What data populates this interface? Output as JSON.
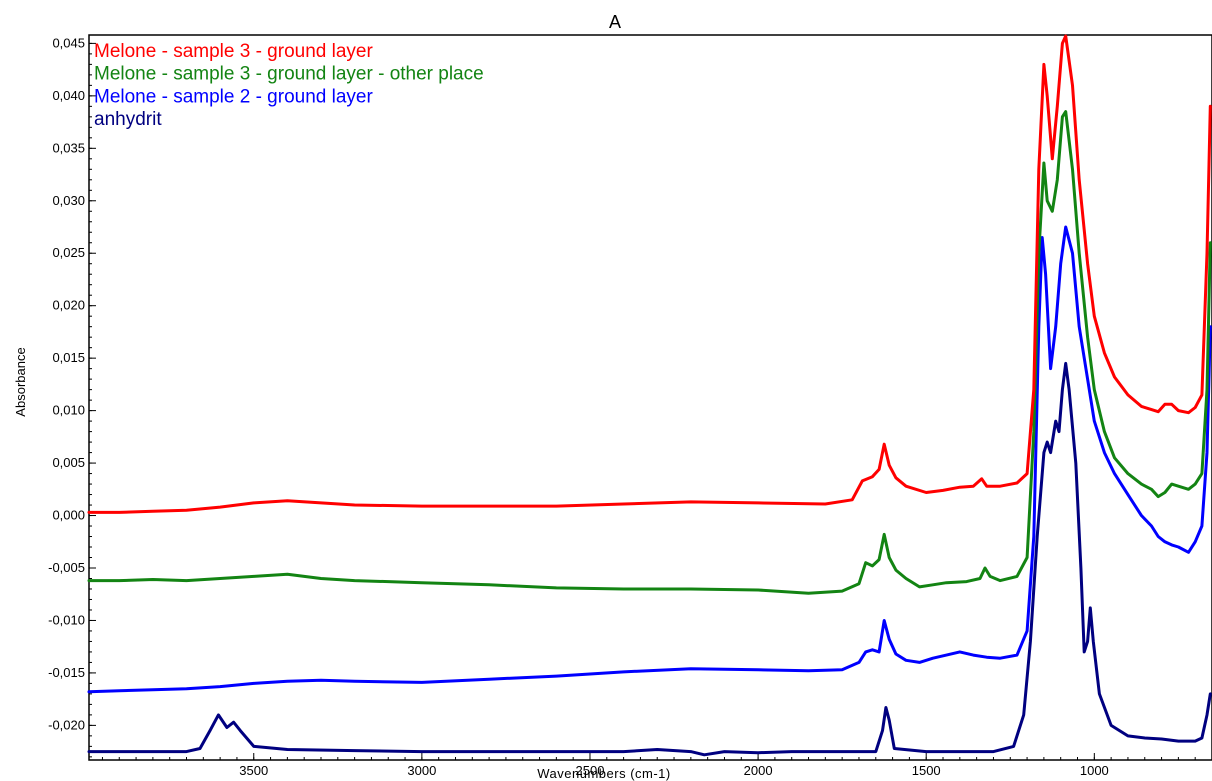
{
  "chart_data": {
    "type": "line",
    "title": "A",
    "xlabel": "Wavenumbers (cm-1)",
    "ylabel": "Absorbance",
    "xlim": [
      3990,
      650
    ],
    "ylim": [
      -0.0233,
      0.0458
    ],
    "x_reversed": true,
    "x_ticks": [
      3500,
      3000,
      2500,
      2000,
      1500,
      1000
    ],
    "y_ticks": [
      -0.02,
      -0.015,
      -0.01,
      -0.005,
      0.0,
      0.005,
      0.01,
      0.015,
      0.02,
      0.025,
      0.03,
      0.035,
      0.04,
      0.045
    ],
    "y_tick_labels": [
      "-0,020",
      "-0,015",
      "-0,010",
      "-0,005",
      "0,000",
      "0,005",
      "0,010",
      "0,015",
      "0,020",
      "0,025",
      "0,030",
      "0,035",
      "0,040",
      "0,045"
    ],
    "x_tick_labels": [
      "3500",
      "3000",
      "2500",
      "2000",
      "1500",
      "1000"
    ],
    "grid": false,
    "legend_position": "top-left",
    "series": [
      {
        "name": "Melone - sample 3 - ground layer",
        "color": "#ff0000",
        "points": [
          [
            3990,
            0.0003
          ],
          [
            3900,
            0.0003
          ],
          [
            3800,
            0.0004
          ],
          [
            3700,
            0.0005
          ],
          [
            3600,
            0.0008
          ],
          [
            3500,
            0.0012
          ],
          [
            3400,
            0.0014
          ],
          [
            3300,
            0.0012
          ],
          [
            3200,
            0.001
          ],
          [
            3000,
            0.0009
          ],
          [
            2800,
            0.0009
          ],
          [
            2600,
            0.0009
          ],
          [
            2400,
            0.0011
          ],
          [
            2200,
            0.0013
          ],
          [
            2000,
            0.0012
          ],
          [
            1800,
            0.0011
          ],
          [
            1720,
            0.0015
          ],
          [
            1690,
            0.0033
          ],
          [
            1660,
            0.0037
          ],
          [
            1640,
            0.0044
          ],
          [
            1625,
            0.0068
          ],
          [
            1610,
            0.0048
          ],
          [
            1590,
            0.0036
          ],
          [
            1560,
            0.0028
          ],
          [
            1500,
            0.0022
          ],
          [
            1450,
            0.0024
          ],
          [
            1400,
            0.0027
          ],
          [
            1360,
            0.0028
          ],
          [
            1335,
            0.0035
          ],
          [
            1320,
            0.0028
          ],
          [
            1280,
            0.0028
          ],
          [
            1230,
            0.0031
          ],
          [
            1200,
            0.004
          ],
          [
            1180,
            0.012
          ],
          [
            1165,
            0.033
          ],
          [
            1150,
            0.043
          ],
          [
            1140,
            0.04
          ],
          [
            1125,
            0.034
          ],
          [
            1110,
            0.039
          ],
          [
            1095,
            0.045
          ],
          [
            1085,
            0.0457
          ],
          [
            1065,
            0.041
          ],
          [
            1045,
            0.032
          ],
          [
            1020,
            0.024
          ],
          [
            1000,
            0.019
          ],
          [
            970,
            0.0155
          ],
          [
            940,
            0.0132
          ],
          [
            900,
            0.0115
          ],
          [
            860,
            0.0104
          ],
          [
            830,
            0.0101
          ],
          [
            810,
            0.0099
          ],
          [
            790,
            0.0106
          ],
          [
            770,
            0.0106
          ],
          [
            750,
            0.01
          ],
          [
            720,
            0.0098
          ],
          [
            700,
            0.0103
          ],
          [
            680,
            0.0115
          ],
          [
            665,
            0.025
          ],
          [
            655,
            0.039
          ]
        ]
      },
      {
        "name": "Melone - sample 3 - ground layer - other place",
        "color": "#138413",
        "points": [
          [
            3990,
            -0.0062
          ],
          [
            3900,
            -0.0062
          ],
          [
            3800,
            -0.0061
          ],
          [
            3700,
            -0.0062
          ],
          [
            3600,
            -0.006
          ],
          [
            3500,
            -0.0058
          ],
          [
            3400,
            -0.0056
          ],
          [
            3300,
            -0.006
          ],
          [
            3200,
            -0.0062
          ],
          [
            3000,
            -0.0064
          ],
          [
            2800,
            -0.0066
          ],
          [
            2600,
            -0.0069
          ],
          [
            2400,
            -0.007
          ],
          [
            2200,
            -0.007
          ],
          [
            2000,
            -0.0071
          ],
          [
            1850,
            -0.0074
          ],
          [
            1750,
            -0.0072
          ],
          [
            1700,
            -0.0065
          ],
          [
            1680,
            -0.0045
          ],
          [
            1660,
            -0.0048
          ],
          [
            1640,
            -0.0042
          ],
          [
            1625,
            -0.0018
          ],
          [
            1610,
            -0.004
          ],
          [
            1590,
            -0.0052
          ],
          [
            1560,
            -0.006
          ],
          [
            1520,
            -0.0068
          ],
          [
            1480,
            -0.0066
          ],
          [
            1440,
            -0.0064
          ],
          [
            1380,
            -0.0063
          ],
          [
            1340,
            -0.006
          ],
          [
            1325,
            -0.005
          ],
          [
            1310,
            -0.0058
          ],
          [
            1280,
            -0.0062
          ],
          [
            1230,
            -0.0058
          ],
          [
            1200,
            -0.004
          ],
          [
            1180,
            0.008
          ],
          [
            1165,
            0.025
          ],
          [
            1150,
            0.0336
          ],
          [
            1140,
            0.03
          ],
          [
            1125,
            0.029
          ],
          [
            1110,
            0.032
          ],
          [
            1095,
            0.038
          ],
          [
            1085,
            0.0385
          ],
          [
            1065,
            0.033
          ],
          [
            1045,
            0.025
          ],
          [
            1020,
            0.017
          ],
          [
            1000,
            0.012
          ],
          [
            970,
            0.008
          ],
          [
            940,
            0.0055
          ],
          [
            900,
            0.004
          ],
          [
            860,
            0.003
          ],
          [
            830,
            0.0025
          ],
          [
            810,
            0.0018
          ],
          [
            790,
            0.0022
          ],
          [
            770,
            0.003
          ],
          [
            750,
            0.0028
          ],
          [
            720,
            0.0025
          ],
          [
            700,
            0.003
          ],
          [
            680,
            0.004
          ],
          [
            665,
            0.012
          ],
          [
            655,
            0.026
          ]
        ]
      },
      {
        "name": "Melone - sample 2 - ground layer",
        "color": "#0000ff",
        "points": [
          [
            3990,
            -0.0168
          ],
          [
            3900,
            -0.0167
          ],
          [
            3800,
            -0.0166
          ],
          [
            3700,
            -0.0165
          ],
          [
            3600,
            -0.0163
          ],
          [
            3500,
            -0.016
          ],
          [
            3400,
            -0.0158
          ],
          [
            3300,
            -0.0157
          ],
          [
            3200,
            -0.0158
          ],
          [
            3000,
            -0.0159
          ],
          [
            2800,
            -0.0156
          ],
          [
            2600,
            -0.0153
          ],
          [
            2400,
            -0.0149
          ],
          [
            2200,
            -0.0146
          ],
          [
            2000,
            -0.0147
          ],
          [
            1850,
            -0.0148
          ],
          [
            1750,
            -0.0147
          ],
          [
            1700,
            -0.014
          ],
          [
            1680,
            -0.013
          ],
          [
            1660,
            -0.0128
          ],
          [
            1640,
            -0.013
          ],
          [
            1625,
            -0.01
          ],
          [
            1610,
            -0.0118
          ],
          [
            1590,
            -0.0132
          ],
          [
            1560,
            -0.0138
          ],
          [
            1520,
            -0.014
          ],
          [
            1480,
            -0.0136
          ],
          [
            1440,
            -0.0133
          ],
          [
            1400,
            -0.013
          ],
          [
            1360,
            -0.0133
          ],
          [
            1320,
            -0.0135
          ],
          [
            1280,
            -0.0136
          ],
          [
            1230,
            -0.0133
          ],
          [
            1200,
            -0.011
          ],
          [
            1180,
            -0.002
          ],
          [
            1165,
            0.018
          ],
          [
            1155,
            0.0265
          ],
          [
            1145,
            0.023
          ],
          [
            1130,
            0.014
          ],
          [
            1115,
            0.018
          ],
          [
            1100,
            0.024
          ],
          [
            1085,
            0.0275
          ],
          [
            1065,
            0.025
          ],
          [
            1045,
            0.018
          ],
          [
            1020,
            0.013
          ],
          [
            1000,
            0.009
          ],
          [
            970,
            0.006
          ],
          [
            940,
            0.004
          ],
          [
            900,
            0.002
          ],
          [
            860,
            0.0
          ],
          [
            830,
            -0.001
          ],
          [
            810,
            -0.002
          ],
          [
            790,
            -0.0025
          ],
          [
            770,
            -0.0028
          ],
          [
            750,
            -0.003
          ],
          [
            720,
            -0.0035
          ],
          [
            700,
            -0.0025
          ],
          [
            680,
            -0.001
          ],
          [
            665,
            0.006
          ],
          [
            655,
            0.018
          ]
        ]
      },
      {
        "name": "anhydrit",
        "color": "#000080",
        "points": [
          [
            3990,
            -0.0225
          ],
          [
            3800,
            -0.0225
          ],
          [
            3700,
            -0.0225
          ],
          [
            3660,
            -0.0222
          ],
          [
            3630,
            -0.0205
          ],
          [
            3605,
            -0.019
          ],
          [
            3580,
            -0.0202
          ],
          [
            3560,
            -0.0197
          ],
          [
            3540,
            -0.0205
          ],
          [
            3500,
            -0.022
          ],
          [
            3400,
            -0.0223
          ],
          [
            3200,
            -0.0224
          ],
          [
            3000,
            -0.0225
          ],
          [
            2800,
            -0.0225
          ],
          [
            2600,
            -0.0225
          ],
          [
            2400,
            -0.0225
          ],
          [
            2300,
            -0.0223
          ],
          [
            2200,
            -0.0225
          ],
          [
            2160,
            -0.0228
          ],
          [
            2100,
            -0.0225
          ],
          [
            2000,
            -0.0226
          ],
          [
            1900,
            -0.0225
          ],
          [
            1700,
            -0.0225
          ],
          [
            1650,
            -0.0225
          ],
          [
            1630,
            -0.0205
          ],
          [
            1620,
            -0.0183
          ],
          [
            1610,
            -0.0195
          ],
          [
            1595,
            -0.0222
          ],
          [
            1500,
            -0.0225
          ],
          [
            1400,
            -0.0225
          ],
          [
            1300,
            -0.0225
          ],
          [
            1240,
            -0.022
          ],
          [
            1210,
            -0.019
          ],
          [
            1190,
            -0.012
          ],
          [
            1170,
            -0.002
          ],
          [
            1150,
            0.006
          ],
          [
            1140,
            0.007
          ],
          [
            1130,
            0.006
          ],
          [
            1115,
            0.009
          ],
          [
            1105,
            0.008
          ],
          [
            1095,
            0.012
          ],
          [
            1085,
            0.0145
          ],
          [
            1075,
            0.012
          ],
          [
            1055,
            0.005
          ],
          [
            1040,
            -0.005
          ],
          [
            1030,
            -0.013
          ],
          [
            1020,
            -0.012
          ],
          [
            1012,
            -0.0088
          ],
          [
            1003,
            -0.012
          ],
          [
            985,
            -0.017
          ],
          [
            950,
            -0.02
          ],
          [
            900,
            -0.021
          ],
          [
            850,
            -0.0212
          ],
          [
            800,
            -0.0213
          ],
          [
            750,
            -0.0215
          ],
          [
            700,
            -0.0215
          ],
          [
            680,
            -0.0212
          ],
          [
            665,
            -0.019
          ],
          [
            655,
            -0.017
          ]
        ]
      }
    ]
  }
}
